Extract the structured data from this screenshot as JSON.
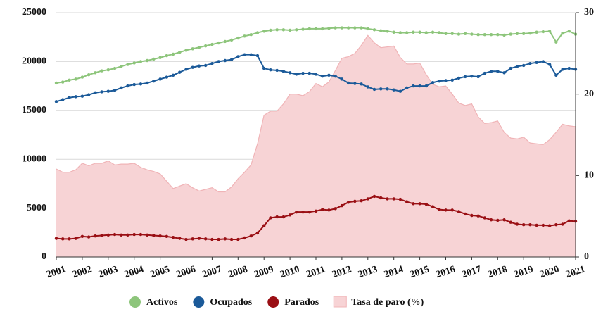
{
  "chart_data": {
    "type": "line",
    "x": [
      2001,
      2001.25,
      2001.5,
      2001.75,
      2002,
      2002.25,
      2002.5,
      2002.75,
      2003,
      2003.25,
      2003.5,
      2003.75,
      2004,
      2004.25,
      2004.5,
      2004.75,
      2005,
      2005.25,
      2005.5,
      2005.75,
      2006,
      2006.25,
      2006.5,
      2006.75,
      2007,
      2007.25,
      2007.5,
      2007.75,
      2008,
      2008.25,
      2008.5,
      2008.75,
      2009,
      2009.25,
      2009.5,
      2009.75,
      2010,
      2010.25,
      2010.5,
      2010.75,
      2011,
      2011.25,
      2011.5,
      2011.75,
      2012,
      2012.25,
      2012.5,
      2012.75,
      2013,
      2013.25,
      2013.5,
      2013.75,
      2014,
      2014.25,
      2014.5,
      2014.75,
      2015,
      2015.25,
      2015.5,
      2015.75,
      2016,
      2016.25,
      2016.5,
      2016.75,
      2017,
      2017.25,
      2017.5,
      2017.75,
      2018,
      2018.25,
      2018.5,
      2018.75,
      2019,
      2019.25,
      2019.5,
      2019.75,
      2020,
      2020.25,
      2020.5,
      2020.75,
      2021
    ],
    "xlim": [
      2001,
      2021
    ],
    "xticks": [
      2001,
      2002,
      2003,
      2004,
      2005,
      2006,
      2007,
      2008,
      2009,
      2010,
      2011,
      2012,
      2013,
      2014,
      2015,
      2016,
      2017,
      2018,
      2019,
      2020,
      2021
    ],
    "ylim": [
      0,
      25000
    ],
    "yticks": [
      0,
      5000,
      10000,
      15000,
      20000,
      25000
    ],
    "y2lim": [
      0,
      30
    ],
    "y2ticks": [
      0,
      10,
      20,
      30
    ],
    "grid": true,
    "series": [
      {
        "name": "Tasa de paro (%)",
        "color": "#f0b4b7",
        "fill": "#f7d3d5",
        "kind": "area",
        "axis": "y2",
        "values": [
          10.8,
          10.4,
          10.4,
          10.7,
          11.5,
          11.2,
          11.5,
          11.5,
          11.8,
          11.3,
          11.4,
          11.4,
          11.5,
          11.0,
          10.7,
          10.5,
          10.2,
          9.3,
          8.4,
          8.7,
          9.0,
          8.5,
          8.1,
          8.3,
          8.5,
          8.0,
          8.0,
          8.6,
          9.6,
          10.4,
          11.3,
          13.9,
          17.4,
          17.9,
          17.9,
          18.8,
          20.0,
          20.0,
          19.8,
          20.3,
          21.3,
          20.9,
          21.5,
          22.9,
          24.4,
          24.6,
          25.0,
          26.0,
          27.2,
          26.3,
          25.7,
          25.8,
          25.9,
          24.5,
          23.7,
          23.7,
          23.8,
          22.4,
          21.2,
          20.9,
          21.0,
          20.0,
          18.9,
          18.6,
          18.8,
          17.2,
          16.4,
          16.5,
          16.7,
          15.3,
          14.6,
          14.5,
          14.7,
          14.0,
          13.9,
          13.8,
          14.4,
          15.3,
          16.3,
          16.1,
          16.0
        ]
      },
      {
        "name": "Activos",
        "color": "#8dc57b",
        "kind": "line",
        "values": [
          17800,
          17900,
          18100,
          18200,
          18400,
          18650,
          18850,
          19050,
          19150,
          19300,
          19500,
          19700,
          19850,
          20000,
          20100,
          20250,
          20400,
          20600,
          20750,
          20950,
          21150,
          21300,
          21450,
          21600,
          21750,
          21900,
          22050,
          22200,
          22400,
          22600,
          22750,
          22950,
          23100,
          23200,
          23250,
          23250,
          23200,
          23250,
          23300,
          23350,
          23350,
          23350,
          23400,
          23450,
          23450,
          23450,
          23450,
          23450,
          23350,
          23250,
          23150,
          23100,
          23000,
          22950,
          22950,
          23000,
          23000,
          22950,
          23000,
          22950,
          22850,
          22850,
          22800,
          22850,
          22800,
          22750,
          22750,
          22750,
          22750,
          22700,
          22800,
          22850,
          22850,
          22900,
          23000,
          23050,
          23100,
          22000,
          22900,
          23100,
          22800
        ]
      },
      {
        "name": "Ocupados",
        "color": "#1b5a99",
        "kind": "line",
        "values": [
          15900,
          16100,
          16300,
          16400,
          16450,
          16600,
          16800,
          16900,
          16950,
          17050,
          17300,
          17500,
          17650,
          17700,
          17800,
          18000,
          18200,
          18400,
          18600,
          18900,
          19200,
          19400,
          19550,
          19600,
          19800,
          20000,
          20100,
          20200,
          20500,
          20700,
          20700,
          20600,
          19300,
          19150,
          19100,
          19000,
          18850,
          18700,
          18800,
          18800,
          18700,
          18500,
          18600,
          18500,
          18200,
          17800,
          17750,
          17700,
          17400,
          17150,
          17200,
          17200,
          17100,
          16950,
          17300,
          17500,
          17500,
          17500,
          17850,
          18000,
          18050,
          18100,
          18300,
          18450,
          18500,
          18450,
          18800,
          19000,
          19000,
          18850,
          19300,
          19500,
          19600,
          19800,
          19900,
          20000,
          19700,
          18600,
          19200,
          19300,
          19200
        ]
      },
      {
        "name": "Parados",
        "color": "#9a0f14",
        "kind": "line",
        "values": [
          1900,
          1850,
          1850,
          1900,
          2100,
          2050,
          2150,
          2200,
          2250,
          2300,
          2250,
          2250,
          2300,
          2300,
          2250,
          2200,
          2150,
          2100,
          2000,
          1900,
          1800,
          1850,
          1900,
          1850,
          1800,
          1800,
          1850,
          1800,
          1800,
          1950,
          2150,
          2450,
          3200,
          4000,
          4100,
          4100,
          4300,
          4600,
          4600,
          4600,
          4700,
          4850,
          4800,
          4950,
          5250,
          5600,
          5700,
          5750,
          5950,
          6200,
          6050,
          5950,
          5950,
          5900,
          5650,
          5450,
          5450,
          5400,
          5150,
          4850,
          4800,
          4800,
          4650,
          4400,
          4250,
          4200,
          4000,
          3800,
          3750,
          3800,
          3550,
          3350,
          3300,
          3300,
          3250,
          3250,
          3200,
          3300,
          3350,
          3700,
          3650
        ]
      }
    ],
    "legend_order": [
      "Activos",
      "Ocupados",
      "Parados",
      "Tasa de paro (%)"
    ]
  }
}
